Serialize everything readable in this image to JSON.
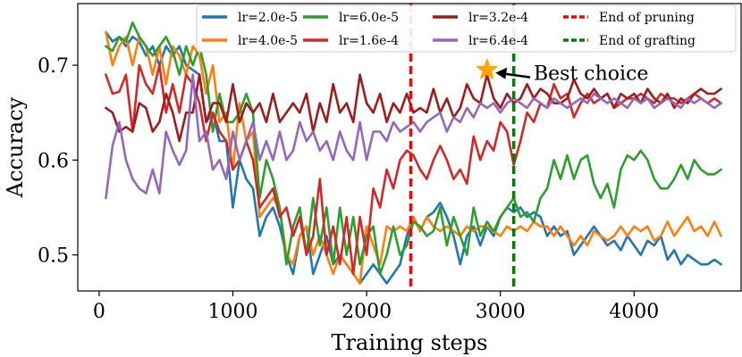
{
  "chart_data": {
    "type": "line",
    "title": "",
    "xlabel": "Training steps",
    "ylabel": "Accuracy",
    "xlim": [
      -160,
      4800
    ],
    "ylim": [
      0.462,
      0.765
    ],
    "xticks": [
      0,
      1000,
      2000,
      3000,
      4000
    ],
    "xtick_labels": [
      "0",
      "1000",
      "2000",
      "3000",
      "4000"
    ],
    "yticks": [
      0.5,
      0.6,
      0.7
    ],
    "ytick_labels": [
      "0.5",
      "0.6",
      "0.7"
    ],
    "legend_position": "top-right",
    "series": [
      {
        "name": "lr=2.0e-5",
        "color": "#1f77b4",
        "x": [
          50,
          100,
          150,
          200,
          250,
          300,
          350,
          400,
          450,
          500,
          550,
          600,
          650,
          700,
          750,
          800,
          850,
          900,
          950,
          1000,
          1050,
          1100,
          1150,
          1200,
          1250,
          1300,
          1350,
          1400,
          1450,
          1500,
          1550,
          1600,
          1650,
          1700,
          1750,
          1800,
          1850,
          1900,
          1950,
          2000,
          2050,
          2100,
          2150,
          2200,
          2250,
          2300,
          2350,
          2400,
          2450,
          2500,
          2550,
          2600,
          2650,
          2700,
          2750,
          2800,
          2850,
          2900,
          2950,
          3000,
          3050,
          3100,
          3150,
          3200,
          3250,
          3300,
          3350,
          3400,
          3450,
          3500,
          3550,
          3600,
          3650,
          3700,
          3750,
          3800,
          3850,
          3900,
          3950,
          4000,
          4050,
          4100,
          4150,
          4200,
          4250,
          4300,
          4350,
          4400,
          4450,
          4500,
          4550,
          4600,
          4650
        ],
        "values": [
          0.735,
          0.725,
          0.73,
          0.72,
          0.73,
          0.725,
          0.71,
          0.72,
          0.7,
          0.72,
          0.71,
          0.72,
          0.7,
          0.695,
          0.69,
          0.64,
          0.65,
          0.62,
          0.62,
          0.55,
          0.6,
          0.58,
          0.57,
          0.52,
          0.54,
          0.55,
          0.53,
          0.5,
          0.48,
          0.52,
          0.53,
          0.48,
          0.5,
          0.52,
          0.49,
          0.5,
          0.49,
          0.48,
          0.47,
          0.48,
          0.49,
          0.48,
          0.47,
          0.48,
          0.49,
          0.52,
          0.54,
          0.525,
          0.54,
          0.545,
          0.555,
          0.54,
          0.52,
          0.49,
          0.52,
          0.53,
          0.51,
          0.53,
          0.52,
          0.54,
          0.55,
          0.545,
          0.55,
          0.54,
          0.545,
          0.54,
          0.52,
          0.53,
          0.52,
          0.525,
          0.5,
          0.51,
          0.52,
          0.53,
          0.52,
          0.51,
          0.515,
          0.505,
          0.52,
          0.51,
          0.5,
          0.515,
          0.51,
          0.52,
          0.495,
          0.505,
          0.49,
          0.5,
          0.495,
          0.49,
          0.49,
          0.495,
          0.49
        ]
      },
      {
        "name": "lr=4.0e-5",
        "color": "#ff7f0e",
        "x": [
          50,
          100,
          150,
          200,
          250,
          300,
          350,
          400,
          450,
          500,
          550,
          600,
          650,
          700,
          750,
          800,
          850,
          900,
          950,
          1000,
          1050,
          1100,
          1150,
          1200,
          1250,
          1300,
          1350,
          1400,
          1450,
          1500,
          1550,
          1600,
          1650,
          1700,
          1750,
          1800,
          1850,
          1900,
          1950,
          2000,
          2050,
          2100,
          2150,
          2200,
          2250,
          2300,
          2350,
          2400,
          2450,
          2500,
          2550,
          2600,
          2650,
          2700,
          2750,
          2800,
          2850,
          2900,
          2950,
          3000,
          3050,
          3100,
          3150,
          3200,
          3250,
          3300,
          3350,
          3400,
          3450,
          3500,
          3550,
          3600,
          3650,
          3700,
          3750,
          3800,
          3850,
          3900,
          3950,
          4000,
          4050,
          4100,
          4150,
          4200,
          4250,
          4300,
          4350,
          4400,
          4450,
          4500,
          4550,
          4600,
          4650
        ],
        "values": [
          0.735,
          0.7,
          0.72,
          0.73,
          0.7,
          0.73,
          0.72,
          0.69,
          0.72,
          0.68,
          0.72,
          0.71,
          0.69,
          0.72,
          0.71,
          0.67,
          0.7,
          0.64,
          0.65,
          0.59,
          0.66,
          0.62,
          0.63,
          0.54,
          0.55,
          0.56,
          0.55,
          0.5,
          0.49,
          0.52,
          0.53,
          0.5,
          0.52,
          0.5,
          0.48,
          0.5,
          0.49,
          0.48,
          0.47,
          0.53,
          0.51,
          0.49,
          0.53,
          0.525,
          0.53,
          0.525,
          0.54,
          0.525,
          0.54,
          0.53,
          0.525,
          0.53,
          0.525,
          0.52,
          0.53,
          0.525,
          0.53,
          0.53,
          0.525,
          0.52,
          0.53,
          0.525,
          0.53,
          0.525,
          0.535,
          0.53,
          0.53,
          0.52,
          0.53,
          0.52,
          0.51,
          0.52,
          0.51,
          0.525,
          0.52,
          0.515,
          0.52,
          0.53,
          0.52,
          0.53,
          0.525,
          0.53,
          0.515,
          0.52,
          0.535,
          0.52,
          0.53,
          0.54,
          0.525,
          0.53,
          0.52,
          0.535,
          0.52
        ]
      },
      {
        "name": "lr=6.0e-5",
        "color": "#2ca02c",
        "x": [
          50,
          100,
          150,
          200,
          250,
          300,
          350,
          400,
          450,
          500,
          550,
          600,
          650,
          700,
          750,
          800,
          850,
          900,
          950,
          1000,
          1050,
          1100,
          1150,
          1200,
          1250,
          1300,
          1350,
          1400,
          1450,
          1500,
          1550,
          1600,
          1650,
          1700,
          1750,
          1800,
          1850,
          1900,
          1950,
          2000,
          2050,
          2100,
          2150,
          2200,
          2250,
          2300,
          2350,
          2400,
          2450,
          2500,
          2550,
          2600,
          2650,
          2700,
          2750,
          2800,
          2850,
          2900,
          2950,
          3000,
          3050,
          3100,
          3150,
          3200,
          3250,
          3300,
          3350,
          3400,
          3450,
          3500,
          3550,
          3600,
          3650,
          3700,
          3750,
          3800,
          3850,
          3900,
          3950,
          4000,
          4050,
          4100,
          4150,
          4200,
          4250,
          4300,
          4350,
          4400,
          4450,
          4500,
          4550,
          4600,
          4650
        ],
        "values": [
          0.72,
          0.715,
          0.73,
          0.725,
          0.745,
          0.73,
          0.72,
          0.71,
          0.72,
          0.73,
          0.715,
          0.69,
          0.72,
          0.7,
          0.72,
          0.69,
          0.63,
          0.67,
          0.64,
          0.64,
          0.65,
          0.67,
          0.65,
          0.56,
          0.6,
          0.58,
          0.55,
          0.49,
          0.53,
          0.55,
          0.5,
          0.56,
          0.51,
          0.55,
          0.49,
          0.55,
          0.5,
          0.54,
          0.49,
          0.52,
          0.53,
          0.48,
          0.5,
          0.53,
          0.5,
          0.51,
          0.535,
          0.53,
          0.52,
          0.525,
          0.55,
          0.51,
          0.54,
          0.52,
          0.5,
          0.55,
          0.52,
          0.535,
          0.525,
          0.54,
          0.55,
          0.56,
          0.54,
          0.545,
          0.535,
          0.56,
          0.57,
          0.6,
          0.58,
          0.605,
          0.58,
          0.6,
          0.605,
          0.575,
          0.56,
          0.575,
          0.55,
          0.59,
          0.605,
          0.6,
          0.61,
          0.6,
          0.58,
          0.57,
          0.57,
          0.58,
          0.595,
          0.58,
          0.6,
          0.59,
          0.585,
          0.585,
          0.59
        ]
      },
      {
        "name": "lr=1.6e-4",
        "color": "#d62728",
        "x": [
          50,
          100,
          150,
          200,
          250,
          300,
          350,
          400,
          450,
          500,
          550,
          600,
          650,
          700,
          750,
          800,
          850,
          900,
          950,
          1000,
          1050,
          1100,
          1150,
          1200,
          1250,
          1300,
          1350,
          1400,
          1450,
          1500,
          1550,
          1600,
          1650,
          1700,
          1750,
          1800,
          1850,
          1900,
          1950,
          2000,
          2050,
          2100,
          2150,
          2200,
          2250,
          2300,
          2350,
          2400,
          2450,
          2500,
          2550,
          2600,
          2650,
          2700,
          2750,
          2800,
          2850,
          2900,
          2950,
          3000,
          3050,
          3100,
          3150,
          3200,
          3250,
          3300,
          3350,
          3400,
          3450,
          3500,
          3550,
          3600,
          3650,
          3700,
          3750,
          3800,
          3850,
          3900,
          3950,
          4000,
          4050,
          4100,
          4150,
          4200,
          4250,
          4300,
          4350,
          4400,
          4450,
          4500,
          4550,
          4600,
          4650
        ],
        "values": [
          0.69,
          0.67,
          0.672,
          0.69,
          0.63,
          0.7,
          0.68,
          0.67,
          0.7,
          0.65,
          0.68,
          0.65,
          0.69,
          0.68,
          0.66,
          0.62,
          0.65,
          0.63,
          0.62,
          0.59,
          0.6,
          0.62,
          0.6,
          0.55,
          0.56,
          0.57,
          0.54,
          0.55,
          0.52,
          0.54,
          0.5,
          0.52,
          0.58,
          0.5,
          0.53,
          0.49,
          0.54,
          0.48,
          0.54,
          0.5,
          0.57,
          0.55,
          0.59,
          0.57,
          0.6,
          0.61,
          0.605,
          0.59,
          0.58,
          0.6,
          0.615,
          0.6,
          0.58,
          0.59,
          0.575,
          0.625,
          0.6,
          0.62,
          0.61,
          0.64,
          0.63,
          0.595,
          0.62,
          0.65,
          0.64,
          0.66,
          0.655,
          0.68,
          0.665,
          0.67,
          0.645,
          0.66,
          0.67,
          0.66,
          0.665,
          0.67,
          0.655,
          0.66,
          0.665,
          0.665,
          0.67,
          0.665,
          0.66,
          0.67,
          0.665,
          0.665,
          0.66,
          0.665,
          0.67,
          0.665,
          0.66,
          0.665,
          0.66
        ]
      },
      {
        "name": "lr=3.2e-4",
        "color": "#a01c1c",
        "x": [
          50,
          100,
          150,
          200,
          250,
          300,
          350,
          400,
          450,
          500,
          550,
          600,
          650,
          700,
          750,
          800,
          850,
          900,
          950,
          1000,
          1050,
          1100,
          1150,
          1200,
          1250,
          1300,
          1350,
          1400,
          1450,
          1500,
          1550,
          1600,
          1650,
          1700,
          1750,
          1800,
          1850,
          1900,
          1950,
          2000,
          2050,
          2100,
          2150,
          2200,
          2250,
          2300,
          2350,
          2400,
          2450,
          2500,
          2550,
          2600,
          2650,
          2700,
          2750,
          2800,
          2850,
          2900,
          2950,
          3000,
          3050,
          3100,
          3150,
          3200,
          3250,
          3300,
          3350,
          3400,
          3450,
          3500,
          3550,
          3600,
          3650,
          3700,
          3750,
          3800,
          3850,
          3900,
          3950,
          4000,
          4050,
          4100,
          4150,
          4200,
          4250,
          4300,
          4350,
          4400,
          4450,
          4500,
          4550,
          4600,
          4650
        ],
        "values": [
          0.655,
          0.65,
          0.63,
          0.635,
          0.63,
          0.66,
          0.655,
          0.63,
          0.64,
          0.67,
          0.65,
          0.62,
          0.65,
          0.65,
          0.69,
          0.64,
          0.66,
          0.66,
          0.64,
          0.68,
          0.64,
          0.66,
          0.65,
          0.66,
          0.64,
          0.67,
          0.64,
          0.65,
          0.66,
          0.65,
          0.67,
          0.63,
          0.66,
          0.64,
          0.68,
          0.65,
          0.66,
          0.64,
          0.69,
          0.66,
          0.65,
          0.67,
          0.64,
          0.66,
          0.65,
          0.67,
          0.65,
          0.655,
          0.65,
          0.675,
          0.65,
          0.665,
          0.645,
          0.655,
          0.68,
          0.665,
          0.66,
          0.69,
          0.665,
          0.655,
          0.67,
          0.66,
          0.665,
          0.68,
          0.665,
          0.675,
          0.67,
          0.66,
          0.66,
          0.665,
          0.685,
          0.67,
          0.665,
          0.675,
          0.665,
          0.67,
          0.655,
          0.67,
          0.665,
          0.67,
          0.66,
          0.675,
          0.665,
          0.66,
          0.67,
          0.655,
          0.665,
          0.66,
          0.67,
          0.675,
          0.67,
          0.67,
          0.675
        ]
      },
      {
        "name": "lr=6.4e-4",
        "color": "#9467bd",
        "x": [
          50,
          100,
          150,
          200,
          250,
          300,
          350,
          400,
          450,
          500,
          550,
          600,
          650,
          700,
          750,
          800,
          850,
          900,
          950,
          1000,
          1050,
          1100,
          1150,
          1200,
          1250,
          1300,
          1350,
          1400,
          1450,
          1500,
          1550,
          1600,
          1650,
          1700,
          1750,
          1800,
          1850,
          1900,
          1950,
          2000,
          2050,
          2100,
          2150,
          2200,
          2250,
          2300,
          2350,
          2400,
          2450,
          2500,
          2550,
          2600,
          2650,
          2700,
          2750,
          2800,
          2850,
          2900,
          2950,
          3000,
          3050,
          3100,
          3150,
          3200,
          3250,
          3300,
          3350,
          3400,
          3450,
          3500,
          3550,
          3600,
          3650,
          3700,
          3750,
          3800,
          3850,
          3900,
          3950,
          4000,
          4050,
          4100,
          4150,
          4200,
          4250,
          4300,
          4350,
          4400,
          4450,
          4500,
          4550,
          4600,
          4650
        ],
        "values": [
          0.56,
          0.615,
          0.64,
          0.6,
          0.58,
          0.57,
          0.565,
          0.59,
          0.565,
          0.63,
          0.61,
          0.595,
          0.61,
          0.69,
          0.62,
          0.63,
          0.59,
          0.6,
          0.58,
          0.63,
          0.6,
          0.62,
          0.64,
          0.6,
          0.62,
          0.6,
          0.63,
          0.6,
          0.61,
          0.64,
          0.62,
          0.63,
          0.61,
          0.62,
          0.6,
          0.63,
          0.61,
          0.6,
          0.64,
          0.6,
          0.63,
          0.63,
          0.62,
          0.64,
          0.63,
          0.635,
          0.64,
          0.63,
          0.64,
          0.645,
          0.65,
          0.63,
          0.645,
          0.64,
          0.655,
          0.645,
          0.66,
          0.655,
          0.66,
          0.65,
          0.66,
          0.665,
          0.66,
          0.655,
          0.665,
          0.66,
          0.655,
          0.665,
          0.66,
          0.655,
          0.66,
          0.665,
          0.66,
          0.67,
          0.665,
          0.66,
          0.665,
          0.66,
          0.655,
          0.665,
          0.66,
          0.665,
          0.655,
          0.66,
          0.665,
          0.66,
          0.655,
          0.665,
          0.66,
          0.665,
          0.66,
          0.655,
          0.66
        ]
      }
    ],
    "vlines": [
      {
        "name": "End of pruning",
        "color": "#ff0000",
        "x": 2330
      },
      {
        "name": "End of grafting",
        "color": "#008000",
        "x": 3100
      }
    ],
    "marker": {
      "x": 2900,
      "y": 0.695,
      "color": "#ffa500",
      "shape": "star"
    },
    "annotation": {
      "text": "Best choice",
      "arrow_to_x": 2930,
      "arrow_to_y": 0.692
    }
  }
}
